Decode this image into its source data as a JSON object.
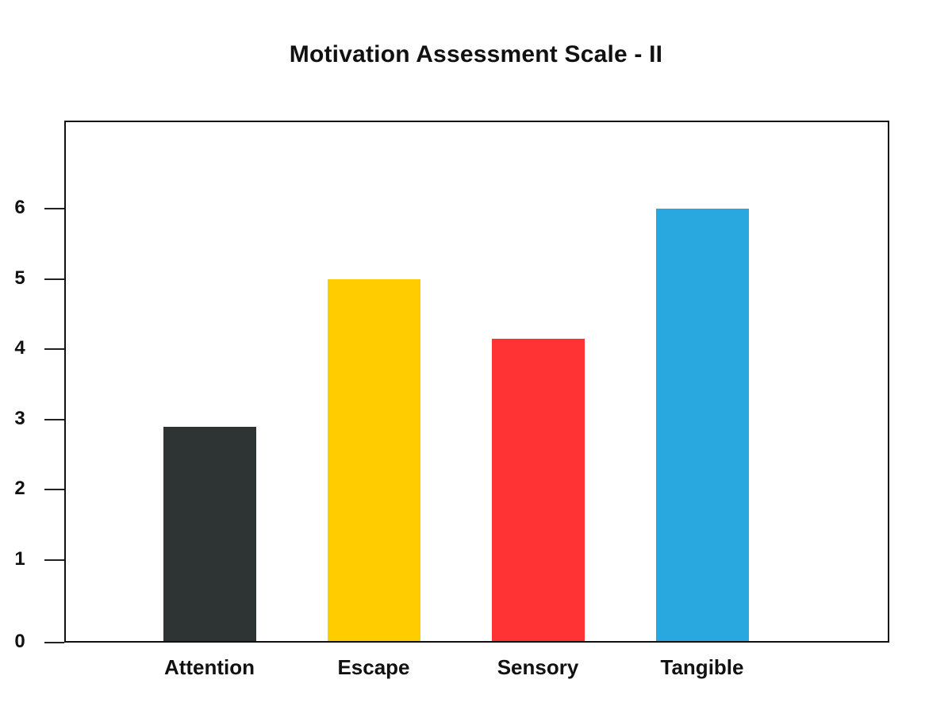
{
  "chart_data": {
    "type": "bar",
    "title": "Motivation Assessment Scale - II",
    "xlabel": "",
    "ylabel": "",
    "categories": [
      "Attention",
      "Escape",
      "Sensory",
      "Tangible"
    ],
    "values": [
      2.9,
      5.0,
      4.15,
      6.0
    ],
    "colors": [
      "#2e3433",
      "#ffcc00",
      "#ff3333",
      "#29a8e0"
    ],
    "yticks": [
      "0",
      "1",
      "2",
      "3",
      "4",
      "5",
      "6"
    ],
    "ylim": [
      0,
      7.4
    ],
    "grid": false,
    "legend": null
  }
}
